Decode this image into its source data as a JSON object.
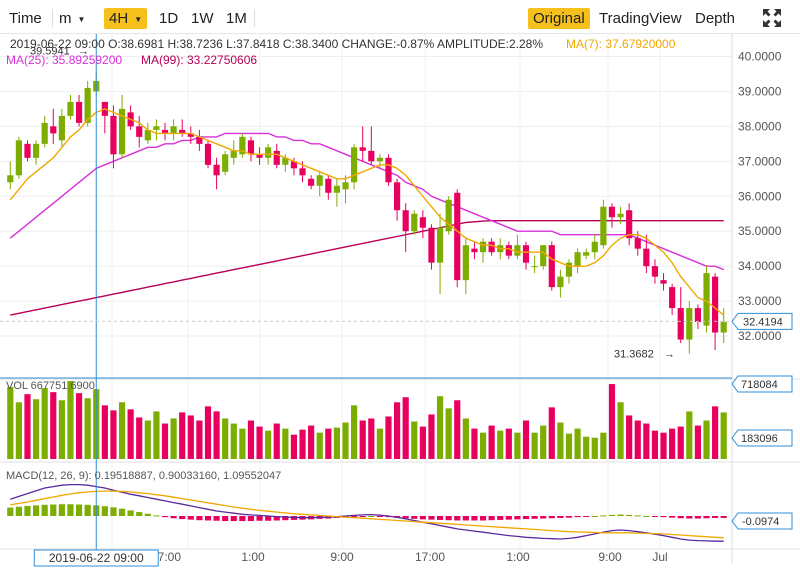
{
  "toolbar": {
    "time_label": "Time",
    "m_label": "m",
    "interval_selected": "4H",
    "intervals": [
      "1D",
      "1W",
      "1M"
    ],
    "views": [
      "Original",
      "TradingView",
      "Depth"
    ],
    "active_view": "Original",
    "fullscreen_icon": "expand-arrows-icon"
  },
  "info": {
    "line1": "2019-06-22 09:00    O:38.6981 H:38.7236 L:37.8418 C:38.3400 CHANGE:-0.87% AMPLITUDE:2.28%",
    "ma7": "MA(7): 37.67920000",
    "ma25": "MA(25): 35.89259200",
    "ma99": "MA(99): 33.22750606"
  },
  "colors": {
    "up": "#7cad00",
    "down": "#e8005f",
    "ma7": "#f0a800",
    "ma25": "#d930d9",
    "ma99": "#b8005a",
    "dif": "#5a2aa0",
    "dea": "#f0a800",
    "crosshair": "#2f8fd8",
    "label_border": "#2f8fd8"
  },
  "price_markers": {
    "high_label": "39.5941",
    "low_label": "31.3682",
    "last_price": "32.4194"
  },
  "volume": {
    "label": "VOL 667751.6900",
    "axis_top": "718084",
    "axis_mid": "183096"
  },
  "macd": {
    "label": "MACD(12, 26, 9): 0.19518887, 0.90033160, 1.09552047",
    "axis_value": "-0.0974"
  },
  "time_axis": {
    "crosshair_label": "2019-06-22 09:00",
    "ticks": [
      "17:00",
      "1:00",
      "9:00",
      "17:00",
      "1:00",
      "9:00",
      "Jul"
    ]
  },
  "chart_data": {
    "type": "candlestick",
    "price_axis": {
      "ticks": [
        "40.0000",
        "39.0000",
        "38.0000",
        "37.0000",
        "36.0000",
        "35.0000",
        "34.0000",
        "33.0000",
        "32.0000"
      ],
      "ylim": [
        31.2,
        40.3
      ]
    },
    "candles": [
      [
        36.4,
        37.0,
        36.2,
        36.6
      ],
      [
        36.6,
        37.7,
        36.5,
        37.6
      ],
      [
        37.5,
        37.6,
        37.0,
        37.1
      ],
      [
        37.1,
        37.6,
        36.9,
        37.5
      ],
      [
        37.5,
        38.3,
        37.4,
        38.1
      ],
      [
        38.0,
        38.5,
        37.5,
        37.8
      ],
      [
        37.6,
        38.5,
        37.4,
        38.3
      ],
      [
        38.3,
        38.9,
        38.2,
        38.7
      ],
      [
        38.7,
        38.9,
        38.0,
        38.1
      ],
      [
        38.1,
        39.3,
        38.0,
        39.1
      ],
      [
        39.0,
        39.6,
        38.9,
        39.3
      ],
      [
        38.7,
        38.7,
        37.8,
        38.3
      ],
      [
        38.3,
        38.6,
        36.8,
        37.2
      ],
      [
        37.2,
        38.9,
        37.1,
        38.5
      ],
      [
        38.4,
        38.6,
        37.9,
        38.0
      ],
      [
        38.0,
        38.3,
        37.4,
        37.7
      ],
      [
        37.6,
        38.1,
        37.5,
        37.9
      ],
      [
        37.9,
        38.2,
        37.6,
        38.0
      ],
      [
        37.9,
        38.1,
        37.6,
        37.8
      ],
      [
        37.8,
        38.2,
        37.6,
        38.0
      ],
      [
        37.9,
        38.2,
        37.7,
        37.8
      ],
      [
        37.8,
        38.0,
        37.5,
        37.7
      ],
      [
        37.7,
        37.9,
        37.3,
        37.5
      ],
      [
        37.5,
        37.6,
        36.8,
        36.9
      ],
      [
        36.9,
        37.1,
        36.2,
        36.6
      ],
      [
        36.7,
        37.3,
        36.6,
        37.2
      ],
      [
        37.1,
        37.6,
        36.9,
        37.3
      ],
      [
        37.2,
        37.8,
        37.1,
        37.7
      ],
      [
        37.6,
        37.7,
        37.0,
        37.2
      ],
      [
        37.2,
        37.4,
        36.9,
        37.1
      ],
      [
        37.1,
        37.5,
        36.9,
        37.4
      ],
      [
        37.3,
        37.5,
        36.8,
        36.9
      ],
      [
        36.9,
        37.2,
        36.7,
        37.1
      ],
      [
        37.0,
        37.1,
        36.6,
        36.8
      ],
      [
        36.8,
        37.0,
        36.4,
        36.6
      ],
      [
        36.5,
        36.6,
        36.2,
        36.3
      ],
      [
        36.3,
        36.7,
        36.0,
        36.6
      ],
      [
        36.5,
        36.6,
        35.9,
        36.1
      ],
      [
        36.1,
        36.5,
        35.7,
        36.3
      ],
      [
        36.2,
        36.6,
        35.8,
        36.4
      ],
      [
        36.4,
        37.5,
        36.2,
        37.4
      ],
      [
        37.4,
        38.0,
        37.0,
        37.3
      ],
      [
        37.3,
        38.0,
        36.9,
        37.0
      ],
      [
        37.0,
        37.2,
        36.8,
        37.1
      ],
      [
        37.1,
        37.2,
        36.3,
        36.4
      ],
      [
        36.4,
        36.5,
        35.3,
        35.6
      ],
      [
        35.6,
        35.8,
        34.4,
        35.0
      ],
      [
        35.0,
        35.6,
        34.9,
        35.5
      ],
      [
        35.4,
        35.6,
        34.8,
        35.1
      ],
      [
        35.1,
        35.2,
        33.9,
        34.1
      ],
      [
        34.1,
        35.5,
        33.2,
        35.1
      ],
      [
        35.0,
        36.0,
        34.9,
        35.9
      ],
      [
        36.1,
        36.2,
        33.4,
        33.6
      ],
      [
        33.6,
        34.8,
        33.2,
        34.6
      ],
      [
        34.5,
        34.7,
        34.2,
        34.4
      ],
      [
        34.4,
        34.8,
        34.1,
        34.7
      ],
      [
        34.7,
        34.8,
        34.3,
        34.4
      ],
      [
        34.4,
        34.8,
        34.2,
        34.6
      ],
      [
        34.6,
        34.7,
        34.2,
        34.3
      ],
      [
        34.3,
        34.9,
        34.2,
        34.6
      ],
      [
        34.6,
        34.7,
        33.9,
        34.1
      ],
      [
        34.0,
        34.3,
        33.8,
        34.0
      ],
      [
        34.0,
        34.6,
        33.9,
        34.6
      ],
      [
        34.6,
        34.7,
        33.3,
        33.4
      ],
      [
        33.4,
        33.9,
        33.1,
        33.7
      ],
      [
        33.7,
        34.2,
        33.5,
        34.1
      ],
      [
        34.0,
        34.5,
        33.8,
        34.4
      ],
      [
        34.3,
        34.5,
        34.2,
        34.4
      ],
      [
        34.4,
        34.9,
        34.2,
        34.7
      ],
      [
        34.6,
        35.9,
        34.5,
        35.7
      ],
      [
        35.7,
        35.8,
        35.1,
        35.4
      ],
      [
        35.4,
        35.7,
        35.2,
        35.5
      ],
      [
        35.6,
        35.8,
        34.6,
        34.8
      ],
      [
        34.8,
        35.0,
        34.3,
        34.5
      ],
      [
        34.5,
        34.9,
        33.8,
        34.0
      ],
      [
        34.0,
        34.2,
        33.5,
        33.7
      ],
      [
        33.6,
        33.8,
        33.3,
        33.5
      ],
      [
        33.4,
        33.5,
        32.6,
        32.8
      ],
      [
        32.8,
        33.4,
        31.8,
        31.9
      ],
      [
        31.9,
        33.0,
        31.5,
        32.8
      ],
      [
        32.8,
        32.9,
        32.2,
        32.4
      ],
      [
        32.3,
        34.0,
        32.1,
        33.8
      ],
      [
        33.7,
        33.8,
        31.6,
        32.1
      ],
      [
        32.1,
        32.8,
        31.8,
        32.4
      ]
    ],
    "volume": [
      710,
      560,
      640,
      590,
      700,
      660,
      580,
      770,
      650,
      600,
      690,
      530,
      480,
      560,
      490,
      410,
      380,
      470,
      350,
      400,
      460,
      430,
      380,
      520,
      470,
      400,
      350,
      300,
      380,
      320,
      280,
      350,
      300,
      240,
      290,
      330,
      260,
      300,
      310,
      360,
      530,
      380,
      400,
      300,
      420,
      560,
      610,
      370,
      320,
      440,
      620,
      500,
      580,
      400,
      300,
      260,
      330,
      280,
      300,
      260,
      380,
      260,
      330,
      510,
      360,
      250,
      300,
      220,
      210,
      260,
      740,
      560,
      430,
      380,
      350,
      280,
      260,
      300,
      320,
      470,
      330,
      380,
      520,
      460
    ],
    "ma7": [
      35.9,
      36.2,
      36.5,
      36.7,
      36.9,
      37.1,
      37.4,
      37.7,
      37.9,
      38.2,
      38.4,
      38.5,
      38.4,
      38.3,
      38.2,
      38.1,
      37.9,
      37.8,
      37.8,
      37.8,
      37.8,
      37.8,
      37.7,
      37.6,
      37.5,
      37.4,
      37.3,
      37.3,
      37.2,
      37.2,
      37.2,
      37.2,
      37.1,
      37.0,
      36.9,
      36.8,
      36.7,
      36.6,
      36.5,
      36.5,
      36.6,
      36.7,
      36.8,
      36.9,
      36.9,
      36.8,
      36.6,
      36.3,
      36.0,
      35.7,
      35.4,
      35.2,
      35.0,
      34.8,
      34.7,
      34.6,
      34.6,
      34.5,
      34.5,
      34.4,
      34.4,
      34.4,
      34.4,
      34.2,
      34.1,
      34.0,
      34.0,
      34.0,
      34.1,
      34.3,
      34.6,
      34.8,
      34.9,
      34.9,
      34.8,
      34.6,
      34.4,
      34.1,
      33.7,
      33.4,
      33.1,
      33.0,
      32.8,
      32.6
    ],
    "ma25": [
      34.8,
      35.0,
      35.2,
      35.4,
      35.6,
      35.8,
      36.0,
      36.2,
      36.4,
      36.6,
      36.8,
      36.9,
      37.0,
      37.1,
      37.2,
      37.3,
      37.4,
      37.4,
      37.5,
      37.5,
      37.6,
      37.6,
      37.7,
      37.7,
      37.7,
      37.8,
      37.8,
      37.8,
      37.8,
      37.8,
      37.8,
      37.7,
      37.7,
      37.6,
      37.6,
      37.5,
      37.5,
      37.4,
      37.3,
      37.2,
      37.1,
      37.0,
      36.9,
      36.8,
      36.7,
      36.6,
      36.4,
      36.3,
      36.2,
      36.0,
      35.9,
      35.8,
      35.7,
      35.6,
      35.5,
      35.4,
      35.3,
      35.2,
      35.1,
      35.0,
      35.0,
      35.0,
      35.0,
      35.0,
      34.9,
      34.9,
      34.9,
      34.9,
      34.9,
      34.9,
      34.9,
      34.9,
      34.9,
      34.8,
      34.7,
      34.6,
      34.5,
      34.4,
      34.3,
      34.2,
      34.1,
      34.0,
      34.0,
      33.9
    ],
    "ma99": [
      32.6,
      32.65,
      32.7,
      32.75,
      32.8,
      32.85,
      32.9,
      32.95,
      33.0,
      33.05,
      33.1,
      33.15,
      33.2,
      33.25,
      33.3,
      33.35,
      33.4,
      33.45,
      33.5,
      33.55,
      33.6,
      33.65,
      33.7,
      33.75,
      33.8,
      33.85,
      33.9,
      33.95,
      34.0,
      34.05,
      34.1,
      34.15,
      34.2,
      34.25,
      34.3,
      34.35,
      34.4,
      34.45,
      34.5,
      34.55,
      34.6,
      34.65,
      34.7,
      34.75,
      34.8,
      34.85,
      34.9,
      34.95,
      35.0,
      35.05,
      35.1,
      35.15,
      35.2,
      35.25,
      35.27,
      35.29,
      35.3,
      35.3,
      35.3,
      35.3,
      35.3,
      35.3,
      35.3,
      35.3,
      35.3,
      35.3,
      35.3,
      35.3,
      35.3,
      35.3,
      35.3,
      35.3,
      35.3,
      35.3,
      35.3,
      35.3,
      35.3,
      35.3,
      35.3,
      35.3,
      35.3,
      35.3,
      35.3,
      35.3
    ],
    "macd_hist": [
      0.3,
      0.33,
      0.36,
      0.38,
      0.4,
      0.41,
      0.42,
      0.42,
      0.41,
      0.4,
      0.38,
      0.35,
      0.31,
      0.26,
      0.2,
      0.14,
      0.08,
      0.02,
      -0.04,
      -0.08,
      -0.11,
      -0.13,
      -0.15,
      -0.16,
      -0.17,
      -0.18,
      -0.18,
      -0.18,
      -0.18,
      -0.17,
      -0.17,
      -0.16,
      -0.15,
      -0.14,
      -0.13,
      -0.12,
      -0.1,
      -0.09,
      -0.07,
      -0.06,
      -0.04,
      -0.02,
      0.0,
      -0.02,
      -0.04,
      -0.06,
      -0.08,
      -0.1,
      -0.12,
      -0.13,
      -0.14,
      -0.15,
      -0.16,
      -0.16,
      -0.16,
      -0.16,
      -0.15,
      -0.14,
      -0.13,
      -0.12,
      -0.11,
      -0.1,
      -0.09,
      -0.08,
      -0.07,
      -0.06,
      -0.04,
      -0.02,
      0.0,
      0.02,
      0.04,
      0.05,
      0.04,
      0.02,
      0.0,
      -0.02,
      -0.04,
      -0.06,
      -0.08,
      -0.09,
      -0.09,
      -0.08,
      -0.07,
      -0.07
    ],
    "macd_dif": [
      0.6,
      0.7,
      0.8,
      0.9,
      1.0,
      1.05,
      1.1,
      1.12,
      1.12,
      1.1,
      1.05,
      1.0,
      0.92,
      0.85,
      0.78,
      0.72,
      0.66,
      0.6,
      0.54,
      0.48,
      0.42,
      0.36,
      0.3,
      0.24,
      0.18,
      0.14,
      0.1,
      0.06,
      0.04,
      0.02,
      0.0,
      -0.02,
      -0.04,
      -0.05,
      -0.06,
      -0.06,
      -0.05,
      -0.04,
      -0.02,
      0.0,
      0.02,
      0.04,
      0.05,
      0.03,
      0.0,
      -0.05,
      -0.1,
      -0.16,
      -0.22,
      -0.28,
      -0.34,
      -0.4,
      -0.46,
      -0.5,
      -0.54,
      -0.58,
      -0.62,
      -0.66,
      -0.7,
      -0.73,
      -0.76,
      -0.78,
      -0.8,
      -0.81,
      -0.82,
      -0.8,
      -0.76,
      -0.7,
      -0.64,
      -0.58,
      -0.52,
      -0.5,
      -0.52,
      -0.56,
      -0.6,
      -0.65,
      -0.7,
      -0.76,
      -0.82,
      -0.86,
      -0.88,
      -0.89,
      -0.9,
      -0.9
    ],
    "macd_dea": [
      0.4,
      0.45,
      0.5,
      0.56,
      0.62,
      0.68,
      0.74,
      0.79,
      0.83,
      0.86,
      0.88,
      0.89,
      0.89,
      0.88,
      0.86,
      0.83,
      0.8,
      0.76,
      0.72,
      0.67,
      0.62,
      0.57,
      0.52,
      0.47,
      0.42,
      0.37,
      0.32,
      0.28,
      0.24,
      0.2,
      0.17,
      0.14,
      0.11,
      0.08,
      0.06,
      0.04,
      0.02,
      0.0,
      -0.02,
      -0.04,
      -0.06,
      -0.08,
      -0.1,
      -0.12,
      -0.14,
      -0.16,
      -0.18,
      -0.2,
      -0.22,
      -0.24,
      -0.26,
      -0.28,
      -0.3,
      -0.32,
      -0.34,
      -0.36,
      -0.38,
      -0.4,
      -0.42,
      -0.44,
      -0.46,
      -0.48,
      -0.5,
      -0.52,
      -0.54,
      -0.56,
      -0.57,
      -0.58,
      -0.59,
      -0.6,
      -0.6,
      -0.6,
      -0.6,
      -0.61,
      -0.62,
      -0.63,
      -0.64,
      -0.66,
      -0.68,
      -0.7,
      -0.72,
      -0.74,
      -0.76,
      -0.78
    ]
  }
}
